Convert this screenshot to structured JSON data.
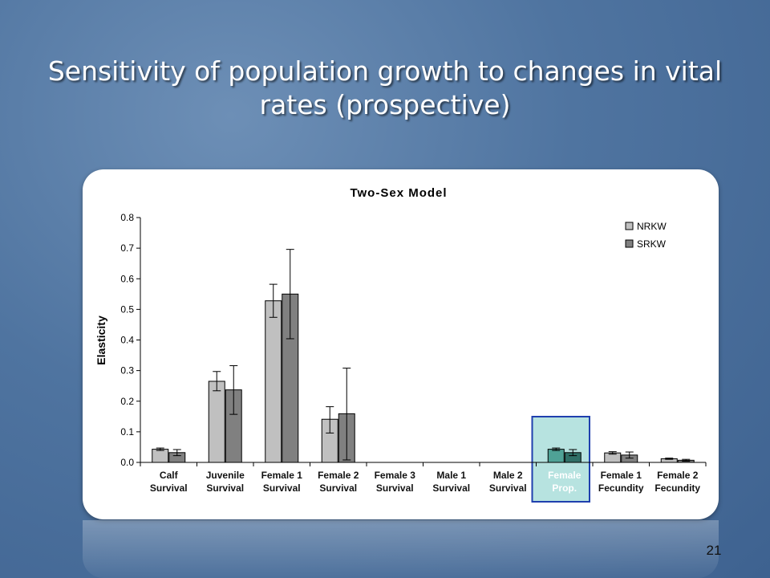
{
  "slide": {
    "title": "Sensitivity of population growth to changes in vital rates (prospective)",
    "page_number": "21"
  },
  "colors": {
    "NRKW": "#c0c0c0",
    "SRKW": "#808080",
    "NRKW_highlight": "#4fa296",
    "SRKW_highlight": "#2f6f66",
    "highlight_fill": "#b7e3e0",
    "highlight_border": "#1f3fae"
  },
  "chart_data": {
    "type": "bar",
    "title": "Two-Sex Model",
    "xlabel": "",
    "ylabel": "Elasticity",
    "ylim": [
      0,
      0.8
    ],
    "yticks": [
      0.0,
      0.1,
      0.2,
      0.3,
      0.4,
      0.5,
      0.6,
      0.7,
      0.8
    ],
    "ytick_labels": [
      "0.0",
      "0.1",
      "0.2",
      "0.3",
      "0.4",
      "0.5",
      "0.6",
      "0.7",
      "0.8"
    ],
    "categories": [
      [
        "Calf",
        "Survival"
      ],
      [
        "Juvenile",
        "Survival"
      ],
      [
        "Female 1",
        "Survival"
      ],
      [
        "Female 2",
        "Survival"
      ],
      [
        "Female 3",
        "Survival"
      ],
      [
        "Male 1",
        "Survival"
      ],
      [
        "Male 2",
        "Survival"
      ],
      [
        "Female",
        "Prop."
      ],
      [
        "Female 1",
        "Fecundity"
      ],
      [
        "Female 2",
        "Fecundity"
      ]
    ],
    "highlighted_category": 7,
    "legend_position": "top-right",
    "series": [
      {
        "name": "NRKW",
        "values": [
          0.043,
          0.265,
          0.528,
          0.141,
          0,
          0,
          0,
          0.043,
          0.031,
          0.012
        ],
        "error_low": [
          0.039,
          0.234,
          0.474,
          0.096,
          0,
          0,
          0,
          0.039,
          0.027,
          0.01
        ],
        "error_high": [
          0.047,
          0.297,
          0.582,
          0.182,
          0,
          0,
          0,
          0.047,
          0.035,
          0.014
        ]
      },
      {
        "name": "SRKW",
        "values": [
          0.032,
          0.237,
          0.55,
          0.159,
          0,
          0,
          0,
          0.032,
          0.024,
          0.007
        ],
        "error_low": [
          0.022,
          0.157,
          0.404,
          0.008,
          0,
          0,
          0,
          0.022,
          0.014,
          0.004
        ],
        "error_high": [
          0.042,
          0.316,
          0.696,
          0.308,
          0,
          0,
          0,
          0.042,
          0.034,
          0.01
        ]
      }
    ]
  }
}
